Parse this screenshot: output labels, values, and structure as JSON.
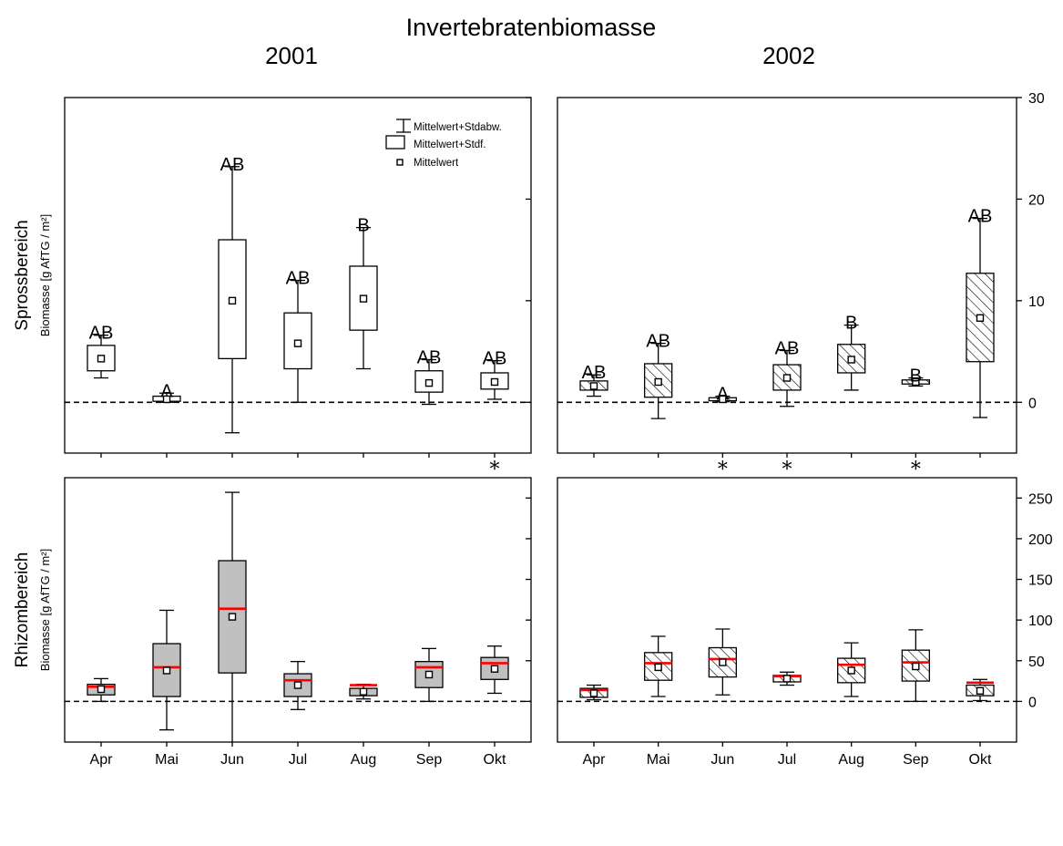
{
  "title": "Invertebratenbiomasse",
  "years": [
    "2001",
    "2002"
  ],
  "legend": {
    "sd": "Mittelwert+Stdabw.",
    "se": "Mittelwert+Stdf.",
    "mean": "Mittelwert"
  },
  "colors": {
    "median": "#ff0000",
    "rhizom_2001_fill": "#c0c0c0"
  },
  "chart_data": [
    {
      "id": "spross",
      "type": "box",
      "row_label": "Sprossbereich",
      "ylabel": "Biomasse [g AfTG / m²]",
      "categories": [
        "Apr",
        "Mai",
        "Jun",
        "Jul",
        "Aug",
        "Sep",
        "Okt"
      ],
      "ylim": [
        -5,
        30
      ],
      "yticks": [
        0,
        10,
        20,
        30
      ],
      "panels": [
        {
          "year": "2001",
          "fill": "white",
          "boxes": [
            {
              "mean": 4.3,
              "box_low": 3.1,
              "box_high": 5.6,
              "whisk_low": 2.4,
              "whisk_high": 6.6,
              "letter": "AB"
            },
            {
              "mean": 0.3,
              "box_low": 0.1,
              "box_high": 0.6,
              "whisk_low": 0.0,
              "whisk_high": 0.9,
              "letter": "A"
            },
            {
              "mean": 10.0,
              "box_low": 4.3,
              "box_high": 16.0,
              "whisk_low": -3.0,
              "whisk_high": 23.2,
              "letter": "AB"
            },
            {
              "mean": 5.8,
              "box_low": 3.3,
              "box_high": 8.8,
              "whisk_low": 0.0,
              "whisk_high": 12.0,
              "letter": "AB"
            },
            {
              "mean": 10.2,
              "box_low": 7.1,
              "box_high": 13.4,
              "whisk_low": 3.3,
              "whisk_high": 17.2,
              "letter": "B"
            },
            {
              "mean": 1.9,
              "box_low": 1.0,
              "box_high": 3.1,
              "whisk_low": -0.2,
              "whisk_high": 4.2,
              "letter": "AB"
            },
            {
              "mean": 2.0,
              "box_low": 1.3,
              "box_high": 2.9,
              "whisk_low": 0.3,
              "whisk_high": 4.1,
              "letter": "AB"
            }
          ]
        },
        {
          "year": "2002",
          "fill": "hatch",
          "boxes": [
            {
              "mean": 1.6,
              "box_low": 1.2,
              "box_high": 2.1,
              "whisk_low": 0.6,
              "whisk_high": 2.7,
              "letter": "AB"
            },
            {
              "mean": 2.0,
              "box_low": 0.5,
              "box_high": 3.8,
              "whisk_low": -1.6,
              "whisk_high": 5.8,
              "letter": "AB"
            },
            {
              "mean": 0.3,
              "box_low": 0.15,
              "box_high": 0.45,
              "whisk_low": 0.05,
              "whisk_high": 0.6,
              "letter": "A"
            },
            {
              "mean": 2.4,
              "box_low": 1.2,
              "box_high": 3.7,
              "whisk_low": -0.4,
              "whisk_high": 5.1,
              "letter": "AB"
            },
            {
              "mean": 4.2,
              "box_low": 2.9,
              "box_high": 5.7,
              "whisk_low": 1.2,
              "whisk_high": 7.6,
              "letter": "B"
            },
            {
              "mean": 2.0,
              "box_low": 1.8,
              "box_high": 2.2,
              "whisk_low": 1.6,
              "whisk_high": 2.4,
              "letter": "B"
            },
            {
              "mean": 8.3,
              "box_low": 4.0,
              "box_high": 12.7,
              "whisk_low": -1.5,
              "whisk_high": 18.1,
              "letter": "AB"
            }
          ]
        }
      ]
    },
    {
      "id": "rhizom",
      "type": "box",
      "row_label": "Rhizombereich",
      "ylabel": "Biomasse [g AfTG / m²]",
      "categories": [
        "Apr",
        "Mai",
        "Jun",
        "Jul",
        "Aug",
        "Sep",
        "Okt"
      ],
      "ylim": [
        -50,
        275
      ],
      "yticks": [
        0,
        50,
        100,
        150,
        200,
        250
      ],
      "panels": [
        {
          "year": "2001",
          "fill": "gray",
          "boxes": [
            {
              "mean": 15,
              "median": 18,
              "box_low": 8,
              "box_high": 21,
              "whisk_low": 0,
              "whisk_high": 28
            },
            {
              "mean": 38,
              "median": 42,
              "box_low": 6,
              "box_high": 71,
              "whisk_low": -35,
              "whisk_high": 112
            },
            {
              "mean": 104,
              "median": 114,
              "box_low": 35,
              "box_high": 173,
              "whisk_low": -50,
              "whisk_high": 257
            },
            {
              "mean": 20,
              "median": 26,
              "box_low": 6,
              "box_high": 34,
              "whisk_low": -10,
              "whisk_high": 49
            },
            {
              "mean": 12,
              "median": 20,
              "box_low": 7,
              "box_high": 16,
              "whisk_low": 3,
              "whisk_high": 21
            },
            {
              "mean": 33,
              "median": 42,
              "box_low": 17,
              "box_high": 49,
              "whisk_low": 0,
              "whisk_high": 65
            },
            {
              "mean": 40,
              "median": 47,
              "box_low": 27,
              "box_high": 54,
              "whisk_low": 10,
              "whisk_high": 68
            }
          ]
        },
        {
          "year": "2002",
          "fill": "hatch",
          "boxes": [
            {
              "mean": 10,
              "median": 14,
              "box_low": 5,
              "box_high": 16,
              "whisk_low": 2,
              "whisk_high": 20
            },
            {
              "mean": 42,
              "median": 47,
              "box_low": 26,
              "box_high": 60,
              "whisk_low": 6,
              "whisk_high": 80
            },
            {
              "mean": 48,
              "median": 52,
              "box_low": 30,
              "box_high": 66,
              "whisk_low": 8,
              "whisk_high": 89
            },
            {
              "mean": 28,
              "median": 31,
              "box_low": 24,
              "box_high": 32,
              "whisk_low": 20,
              "whisk_high": 36
            },
            {
              "mean": 38,
              "median": 45,
              "box_low": 23,
              "box_high": 53,
              "whisk_low": 6,
              "whisk_high": 72
            },
            {
              "mean": 43,
              "median": 48,
              "box_low": 25,
              "box_high": 63,
              "whisk_low": 0,
              "whisk_high": 88
            },
            {
              "mean": 13,
              "median": 23,
              "box_low": 7,
              "box_high": 20,
              "whisk_low": 1,
              "whisk_high": 27
            }
          ]
        }
      ]
    }
  ],
  "significance": {
    "symbol": "*",
    "2001": [
      "Okt"
    ],
    "2002": [
      "Jun",
      "Jul",
      "Sep"
    ]
  }
}
